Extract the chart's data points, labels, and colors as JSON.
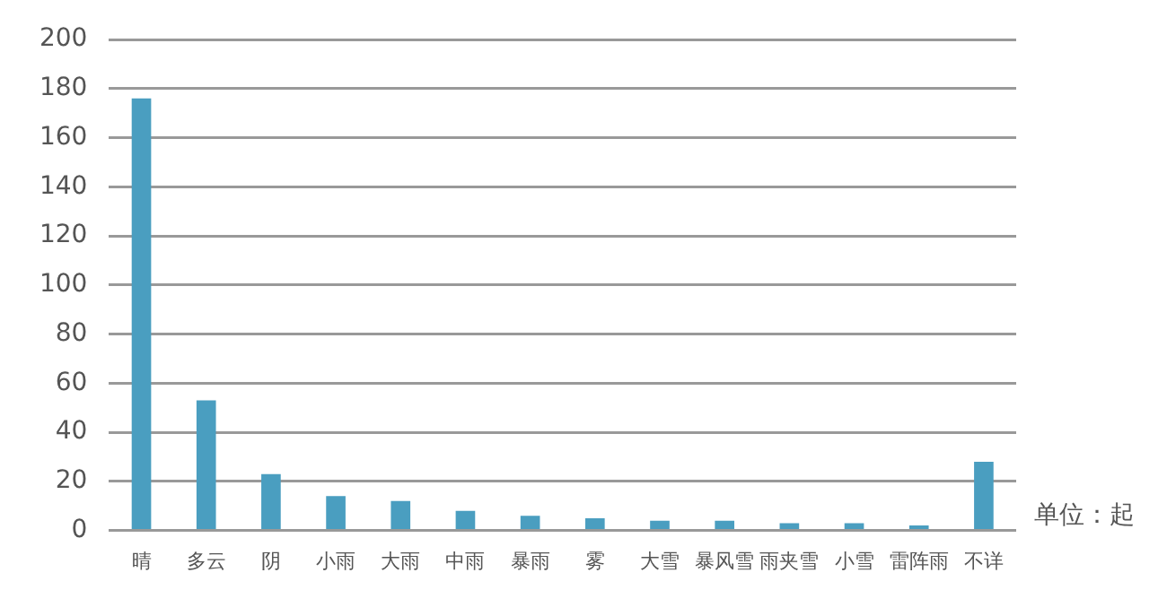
{
  "chart_data": {
    "type": "bar",
    "categories": [
      "晴",
      "多云",
      "阴",
      "小雨",
      "大雨",
      "中雨",
      "暴雨",
      "雾",
      "大雪",
      "暴风雪",
      "雨夹雪",
      "小雪",
      "雷阵雨",
      "不详"
    ],
    "values": [
      176,
      53,
      23,
      14,
      12,
      8,
      6,
      5,
      4,
      4,
      3,
      3,
      2,
      28
    ],
    "color": "#4a9ec0",
    "ylim": [
      0,
      200
    ],
    "yticks": [
      0,
      20,
      40,
      60,
      80,
      100,
      120,
      140,
      160,
      180,
      200
    ],
    "grid": "y",
    "legend": false,
    "annotations": [
      "单位：起"
    ]
  }
}
